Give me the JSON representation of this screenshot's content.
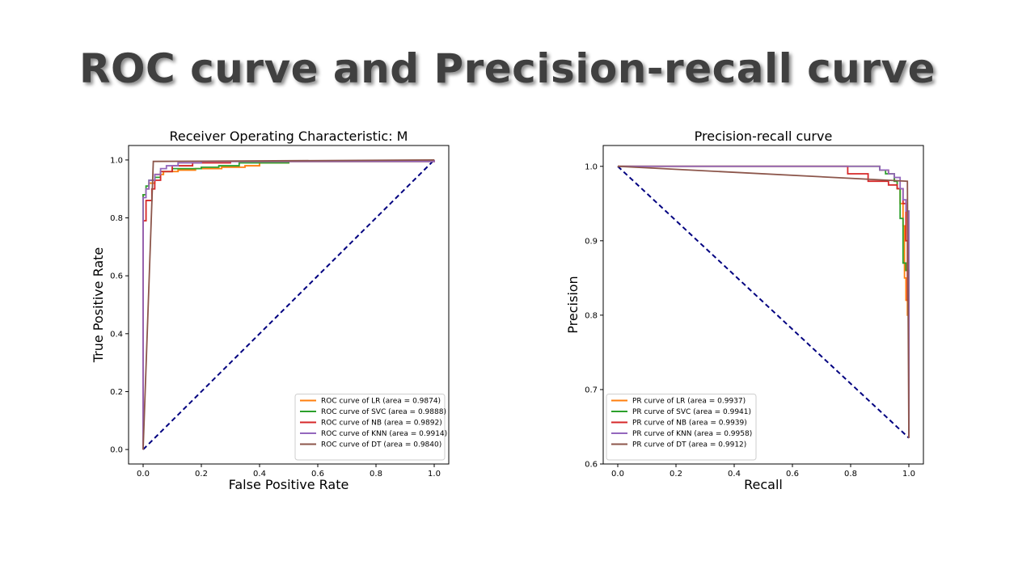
{
  "slide": {
    "title": "ROC curve and Precision-recall curve"
  },
  "chart_data": [
    {
      "id": "roc",
      "type": "line",
      "title": "Receiver Operating Characteristic: M",
      "xlabel": "False Positive Rate",
      "ylabel": "True Positive Rate",
      "xlim": [
        -0.05,
        1.05
      ],
      "ylim": [
        -0.05,
        1.05
      ],
      "xticks": [
        0.0,
        0.2,
        0.4,
        0.6,
        0.8,
        1.0
      ],
      "yticks": [
        0.0,
        0.2,
        0.4,
        0.6,
        0.8,
        1.0
      ],
      "tick_labels_x": [
        "0.0",
        "0.2",
        "0.4",
        "0.6",
        "0.8",
        "1.0"
      ],
      "tick_labels_y": [
        "0.0",
        "0.2",
        "0.4",
        "0.6",
        "0.8",
        "1.0"
      ],
      "legend_position": "lower right",
      "series": [
        {
          "name": "ROC curve of LR (area = 0.9874)",
          "color": "#ff7f0e",
          "step": true,
          "points": [
            [
              0,
              0
            ],
            [
              0,
              0.88
            ],
            [
              0.01,
              0.9
            ],
            [
              0.02,
              0.92
            ],
            [
              0.04,
              0.95
            ],
            [
              0.07,
              0.96
            ],
            [
              0.12,
              0.965
            ],
            [
              0.18,
              0.97
            ],
            [
              0.27,
              0.975
            ],
            [
              0.35,
              0.98
            ],
            [
              0.4,
              0.99
            ],
            [
              0.5,
              0.995
            ],
            [
              1,
              1
            ]
          ]
        },
        {
          "name": "ROC curve of SVC (area = 0.9888)",
          "color": "#2ca02c",
          "step": true,
          "points": [
            [
              0,
              0
            ],
            [
              0,
              0.88
            ],
            [
              0.01,
              0.91
            ],
            [
              0.02,
              0.93
            ],
            [
              0.04,
              0.94
            ],
            [
              0.06,
              0.96
            ],
            [
              0.1,
              0.97
            ],
            [
              0.2,
              0.975
            ],
            [
              0.26,
              0.98
            ],
            [
              0.33,
              0.99
            ],
            [
              0.5,
              0.995
            ],
            [
              1,
              1
            ]
          ]
        },
        {
          "name": "ROC curve of NB (area = 0.9892)",
          "color": "#d62728",
          "step": true,
          "points": [
            [
              0,
              0
            ],
            [
              0,
              0.79
            ],
            [
              0.01,
              0.79
            ],
            [
              0.01,
              0.86
            ],
            [
              0.03,
              0.86
            ],
            [
              0.03,
              0.9
            ],
            [
              0.04,
              0.93
            ],
            [
              0.06,
              0.96
            ],
            [
              0.1,
              0.98
            ],
            [
              0.17,
              0.99
            ],
            [
              0.3,
              0.995
            ],
            [
              1,
              1
            ]
          ]
        },
        {
          "name": "ROC curve of KNN (area = 0.9914)",
          "color": "#9467bd",
          "step": true,
          "points": [
            [
              0,
              0
            ],
            [
              0,
              0.87
            ],
            [
              0.01,
              0.9
            ],
            [
              0.02,
              0.93
            ],
            [
              0.04,
              0.95
            ],
            [
              0.06,
              0.97
            ],
            [
              0.08,
              0.98
            ],
            [
              0.12,
              0.99
            ],
            [
              0.2,
              0.995
            ],
            [
              1,
              1
            ]
          ]
        },
        {
          "name": "ROC curve of DT (area = 0.9840)",
          "color": "#8c564b",
          "step": false,
          "points": [
            [
              0,
              0
            ],
            [
              0.035,
              0.995
            ],
            [
              1,
              1
            ]
          ]
        }
      ],
      "reference_line": {
        "points": [
          [
            0,
            0
          ],
          [
            1,
            1
          ]
        ],
        "color": "#000080",
        "style": "dashed"
      }
    },
    {
      "id": "pr",
      "type": "line",
      "title": "Precision-recall curve",
      "xlabel": "Recall",
      "ylabel": "Precision",
      "xlim": [
        -0.05,
        1.05
      ],
      "ylim": [
        0.6,
        1.028
      ],
      "xticks": [
        0.0,
        0.2,
        0.4,
        0.6,
        0.8,
        1.0
      ],
      "yticks": [
        0.6,
        0.7,
        0.8,
        0.9,
        1.0
      ],
      "tick_labels_x": [
        "0.0",
        "0.2",
        "0.4",
        "0.6",
        "0.8",
        "1.0"
      ],
      "tick_labels_y": [
        "0.6",
        "0.7",
        "0.8",
        "0.9",
        "1.0"
      ],
      "legend_position": "lower left",
      "series": [
        {
          "name": "PR curve of LR (area = 0.9937)",
          "color": "#ff7f0e",
          "step": true,
          "points": [
            [
              0,
              1
            ],
            [
              0.87,
              1
            ],
            [
              0.9,
              0.995
            ],
            [
              0.93,
              0.99
            ],
            [
              0.95,
              0.98
            ],
            [
              0.96,
              0.97
            ],
            [
              0.97,
              0.95
            ],
            [
              0.98,
              0.92
            ],
            [
              0.985,
              0.85
            ],
            [
              0.99,
              0.82
            ],
            [
              0.995,
              0.8
            ],
            [
              1,
              0.635
            ]
          ]
        },
        {
          "name": "PR curve of SVC (area = 0.9941)",
          "color": "#2ca02c",
          "step": true,
          "points": [
            [
              0,
              1
            ],
            [
              0.88,
              1
            ],
            [
              0.9,
              0.995
            ],
            [
              0.92,
              0.99
            ],
            [
              0.95,
              0.98
            ],
            [
              0.96,
              0.97
            ],
            [
              0.97,
              0.93
            ],
            [
              0.98,
              0.87
            ],
            [
              0.99,
              0.86
            ],
            [
              1,
              0.84
            ],
            [
              1,
              0.635
            ]
          ]
        },
        {
          "name": "PR curve of NB (area = 0.9939)",
          "color": "#d62728",
          "step": true,
          "points": [
            [
              0,
              1
            ],
            [
              0.79,
              1
            ],
            [
              0.79,
              0.99
            ],
            [
              0.86,
              0.99
            ],
            [
              0.86,
              0.98
            ],
            [
              0.93,
              0.98
            ],
            [
              0.93,
              0.975
            ],
            [
              0.96,
              0.97
            ],
            [
              0.98,
              0.95
            ],
            [
              0.99,
              0.9
            ],
            [
              0.995,
              0.82
            ],
            [
              1,
              0.8
            ],
            [
              1,
              0.635
            ]
          ]
        },
        {
          "name": "PR curve of KNN (area = 0.9958)",
          "color": "#9467bd",
          "step": true,
          "points": [
            [
              0,
              1
            ],
            [
              0.87,
              1
            ],
            [
              0.9,
              0.995
            ],
            [
              0.93,
              0.99
            ],
            [
              0.95,
              0.985
            ],
            [
              0.97,
              0.97
            ],
            [
              0.98,
              0.955
            ],
            [
              0.99,
              0.94
            ],
            [
              1,
              0.93
            ],
            [
              1,
              0.635
            ]
          ]
        },
        {
          "name": "PR curve of DT (area = 0.9912)",
          "color": "#8c564b",
          "step": false,
          "points": [
            [
              0,
              1
            ],
            [
              0.995,
              0.98
            ],
            [
              1,
              0.635
            ]
          ]
        }
      ],
      "reference_line": {
        "points": [
          [
            0,
            1
          ],
          [
            1,
            0.635
          ]
        ],
        "color": "#000080",
        "style": "dashed"
      }
    }
  ]
}
